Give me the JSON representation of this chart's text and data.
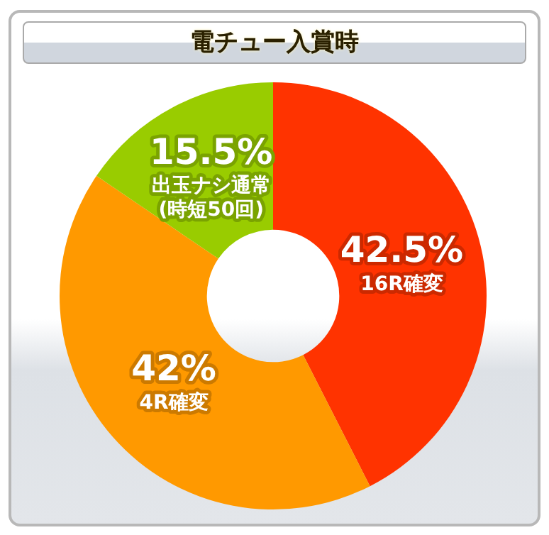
{
  "chart_data": {
    "type": "donut",
    "title": "電チュー入賞時",
    "categories": [
      "16R確変",
      "4R確変",
      "出玉ナシ通常\n(時短50回)"
    ],
    "values": [
      42.5,
      42,
      15.5
    ],
    "colors": [
      "#ff3300",
      "#ff9900",
      "#99cc00"
    ],
    "value_labels": [
      "42.5%",
      "42%",
      "15.5%"
    ],
    "legend": false
  }
}
